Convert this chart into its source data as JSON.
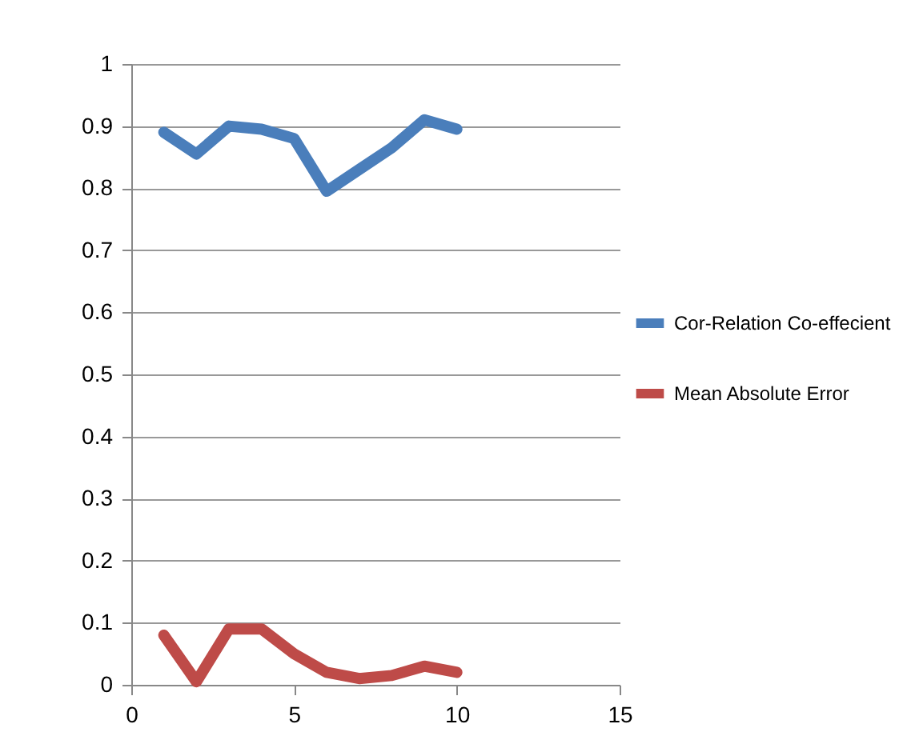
{
  "chart_data": {
    "type": "line",
    "x": [
      1,
      2,
      3,
      4,
      5,
      6,
      7,
      8,
      9,
      10
    ],
    "series": [
      {
        "name": "Cor-Relation Co-effecient",
        "color": "#4a7ebb",
        "values": [
          0.89,
          0.855,
          0.9,
          0.895,
          0.88,
          0.795,
          0.83,
          0.865,
          0.91,
          0.895
        ]
      },
      {
        "name": "Mean Absolute Error",
        "color": "#be4b48",
        "values": [
          0.08,
          0.005,
          0.09,
          0.09,
          0.05,
          0.02,
          0.01,
          0.015,
          0.03,
          0.02
        ]
      }
    ],
    "xlim": [
      0,
      15
    ],
    "xticks": [
      0,
      5,
      10,
      15
    ],
    "ylim": [
      0,
      1
    ],
    "yticks": [
      0,
      0.1,
      0.2,
      0.3,
      0.4,
      0.5,
      0.6,
      0.7,
      0.8,
      0.9,
      1
    ],
    "grid": "y",
    "legend": "right",
    "marker": "none",
    "line_style": "solid"
  }
}
